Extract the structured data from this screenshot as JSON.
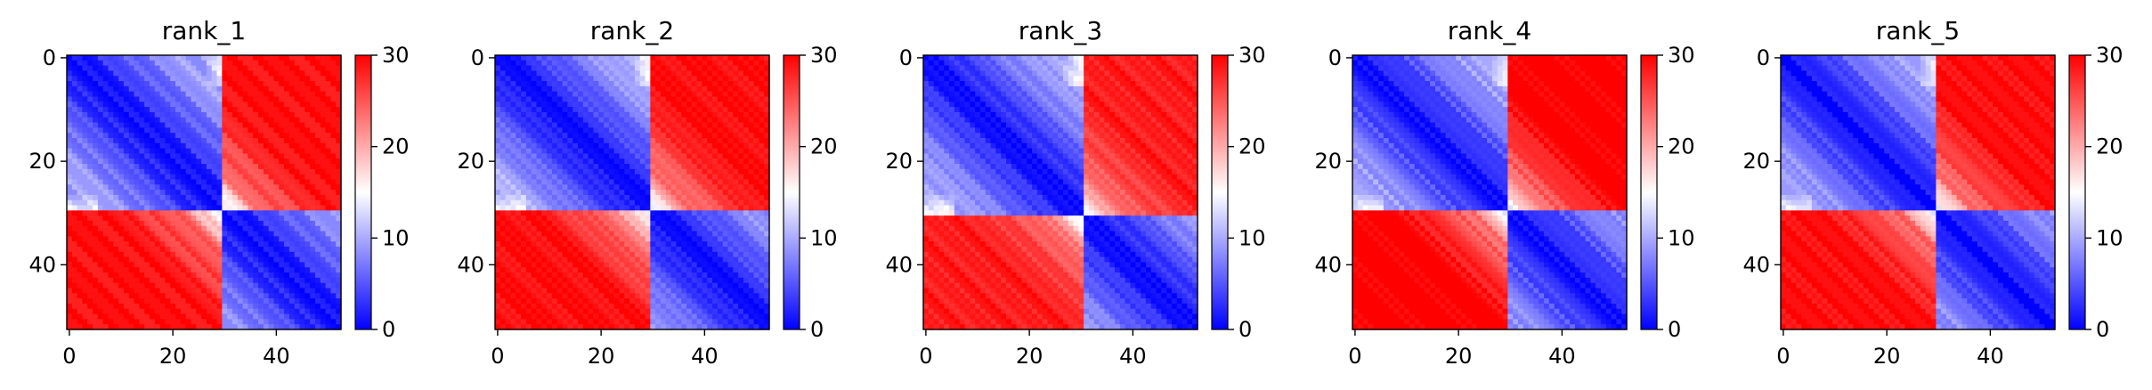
{
  "figure": {
    "colormap": "bwr",
    "colors": {
      "low": "#0000ff",
      "mid": "#ffffff",
      "high": "#ff0000"
    }
  },
  "chart_data": [
    {
      "type": "heatmap",
      "title": "rank_1",
      "n": 53,
      "xlim": [
        0,
        52
      ],
      "ylim": [
        0,
        52
      ],
      "xticks": [
        0,
        20,
        40
      ],
      "yticks": [
        0,
        20,
        40
      ],
      "colorbar": {
        "vmin": 0,
        "vmax": 30,
        "ticks": [
          0,
          10,
          20,
          30
        ]
      },
      "pattern": {
        "boundary": 30,
        "block1_max": 9,
        "block2_max": 8,
        "off_diag_far": 29,
        "off_diag_near": 21,
        "row_dither": [
          0,
          1,
          -1,
          2,
          0,
          -1,
          1,
          0,
          2,
          -1
        ]
      }
    },
    {
      "type": "heatmap",
      "title": "rank_2",
      "n": 53,
      "xlim": [
        0,
        52
      ],
      "ylim": [
        0,
        52
      ],
      "xticks": [
        0,
        20,
        40
      ],
      "yticks": [
        0,
        20,
        40
      ],
      "colorbar": {
        "vmin": 0,
        "vmax": 30,
        "ticks": [
          0,
          10,
          20,
          30
        ]
      },
      "pattern": {
        "boundary": 30,
        "block1_max": 10,
        "block2_max": 8,
        "off_diag_far": 29,
        "off_diag_near": 20,
        "row_dither": [
          1,
          0,
          -1,
          0,
          2,
          1,
          -1,
          0,
          1,
          0
        ]
      }
    },
    {
      "type": "heatmap",
      "title": "rank_3",
      "n": 53,
      "xlim": [
        0,
        52
      ],
      "ylim": [
        0,
        52
      ],
      "xticks": [
        0,
        20,
        40
      ],
      "yticks": [
        0,
        20,
        40
      ],
      "colorbar": {
        "vmin": 0,
        "vmax": 30,
        "ticks": [
          0,
          10,
          20,
          30
        ]
      },
      "pattern": {
        "boundary": 31,
        "block1_max": 9,
        "block2_max": 9,
        "off_diag_far": 28,
        "off_diag_near": 21,
        "row_dither": [
          0,
          -1,
          1,
          1,
          0,
          2,
          -1,
          1,
          0,
          1
        ]
      }
    },
    {
      "type": "heatmap",
      "title": "rank_4",
      "n": 53,
      "xlim": [
        0,
        52
      ],
      "ylim": [
        0,
        52
      ],
      "xticks": [
        0,
        20,
        40
      ],
      "yticks": [
        0,
        20,
        40
      ],
      "colorbar": {
        "vmin": 0,
        "vmax": 30,
        "ticks": [
          0,
          10,
          20,
          30
        ]
      },
      "pattern": {
        "boundary": 30,
        "block1_max": 9,
        "block2_max": 8,
        "off_diag_far": 30,
        "off_diag_near": 20,
        "row_dither": [
          2,
          0,
          1,
          -1,
          0,
          1,
          0,
          -1,
          1,
          2
        ]
      }
    },
    {
      "type": "heatmap",
      "title": "rank_5",
      "n": 53,
      "xlim": [
        0,
        52
      ],
      "ylim": [
        0,
        52
      ],
      "xticks": [
        0,
        20,
        40
      ],
      "yticks": [
        0,
        20,
        40
      ],
      "colorbar": {
        "vmin": 0,
        "vmax": 30,
        "ticks": [
          0,
          10,
          20,
          30
        ]
      },
      "pattern": {
        "boundary": 30,
        "block1_max": 9,
        "block2_max": 8,
        "off_diag_far": 29,
        "off_diag_near": 21,
        "row_dither": [
          0,
          1,
          0,
          -1,
          1,
          0,
          2,
          -1,
          0,
          1
        ]
      }
    }
  ]
}
